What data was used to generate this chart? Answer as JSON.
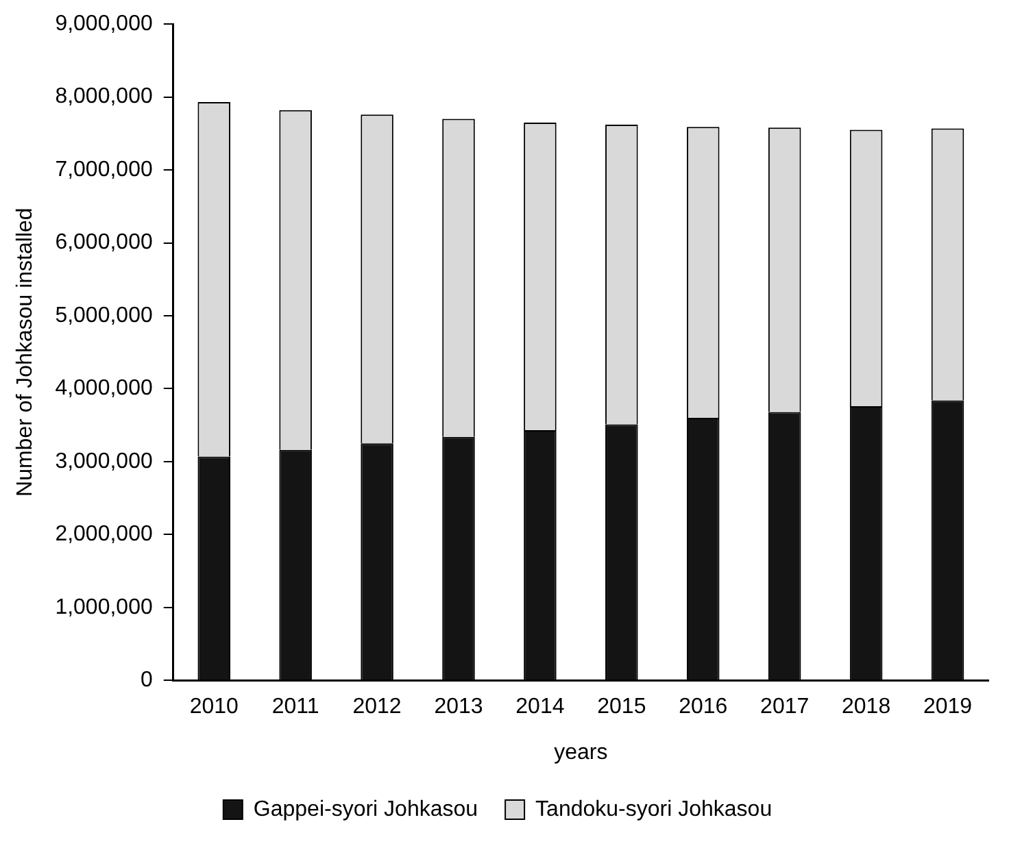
{
  "chart_data": {
    "type": "bar",
    "stacked": true,
    "xlabel": "years",
    "ylabel": "Number of Johkasou installed",
    "categories": [
      "2010",
      "2011",
      "2012",
      "2013",
      "2014",
      "2015",
      "2016",
      "2017",
      "2018",
      "2019"
    ],
    "series": [
      {
        "name": "Gappei-syori Johkasou",
        "color": "#141414",
        "values": [
          3070000,
          3160000,
          3250000,
          3340000,
          3430000,
          3510000,
          3600000,
          3680000,
          3760000,
          3840000
        ]
      },
      {
        "name": "Tandoku-syori Johkasou",
        "color": "#d9d9d9",
        "values": [
          4860000,
          4660000,
          4510000,
          4360000,
          4220000,
          4110000,
          3990000,
          3900000,
          3790000,
          3730000
        ]
      }
    ],
    "ylim": [
      0,
      9000000
    ],
    "yticks": [
      0,
      {
        "value": 1000000,
        "label": "1,000,000"
      },
      {
        "value": 2000000,
        "label": "2,000,000"
      },
      {
        "value": 3000000,
        "label": "3,000,000"
      },
      {
        "value": 4000000,
        "label": "4,000,000"
      },
      {
        "value": 5000000,
        "label": "5,000,000"
      },
      {
        "value": 6000000,
        "label": "6,000,000"
      },
      {
        "value": 7000000,
        "label": "7,000,000"
      },
      {
        "value": 8000000,
        "label": "8,000,000"
      },
      {
        "value": 9000000,
        "label": "9,000,000"
      }
    ],
    "grid": false,
    "legend": "bottom"
  }
}
